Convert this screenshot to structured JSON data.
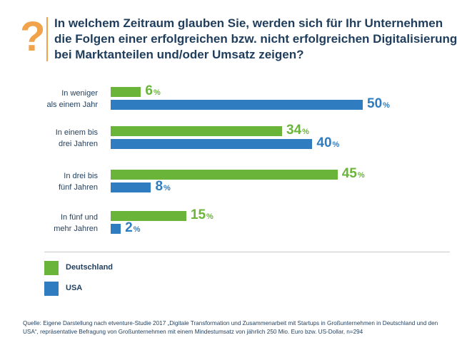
{
  "question_mark": "?",
  "title_lines": [
    "In welchem Zeitraum glauben Sie, werden sich für Ihr Unternehmen",
    "die Folgen einer erfolgreichen bzw. nicht erfolgreichen Digitalisierung",
    "bei Marktanteilen und/oder Umsatz zeigen?"
  ],
  "chart_data": {
    "type": "bar",
    "orientation": "horizontal",
    "categories": [
      [
        "In weniger",
        "als einem Jahr"
      ],
      [
        "In einem bis",
        "drei Jahren"
      ],
      [
        "In drei bis",
        "fünf Jahren"
      ],
      [
        "In fünf und",
        "mehr Jahren"
      ]
    ],
    "series": [
      {
        "name": "Deutschland",
        "key": "de",
        "color": "#6ab539",
        "values": [
          6,
          34,
          45,
          15
        ]
      },
      {
        "name": "USA",
        "key": "us",
        "color": "#2f7cc0",
        "values": [
          50,
          40,
          8,
          2
        ]
      }
    ],
    "unit": "%",
    "xlim": [
      0,
      50
    ]
  },
  "legend": [
    {
      "label": "Deutschland",
      "color": "#6ab539"
    },
    {
      "label": "USA",
      "color": "#2f7cc0"
    }
  ],
  "source_lines": [
    "Quelle: Eigene Darstellung nach etventure-Studie 2017 „Digitale Transformation und Zusammenarbeit mit Startups in Großunternehmen in Deutschland und den",
    "USA“, repräsentative Befragung von Großunternehmen mit einem Mindestumsatz von jährlich 250 Mio. Euro bzw. US-Dollar, n=294"
  ]
}
